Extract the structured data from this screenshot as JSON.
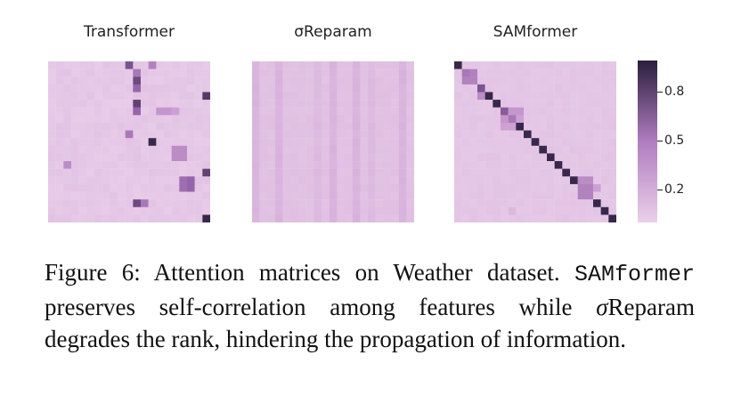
{
  "chart_data": {
    "type": "heatmap",
    "panels": [
      {
        "title": "Transformer",
        "name": "transformer"
      },
      {
        "title": "σReparam",
        "name": "sigma-reparam"
      },
      {
        "title": "SAMformer",
        "name": "samformer"
      }
    ],
    "size": 21,
    "colorbar": {
      "ticks": [
        "0.8",
        "0.5",
        "0.2"
      ],
      "vmin": 0.05,
      "vmax": 0.95,
      "low_color": "#ead0ea",
      "high_color": "#2a1f3d"
    }
  },
  "caption": {
    "prefix": "Figure 6:  Attention matrices on Weather dataset.",
    "model": "SAMformer",
    "part1": " preserves self-correlation among features while ",
    "sigma": "σ",
    "part2": "Reparam degrades the rank, hindering the propagation of information."
  }
}
